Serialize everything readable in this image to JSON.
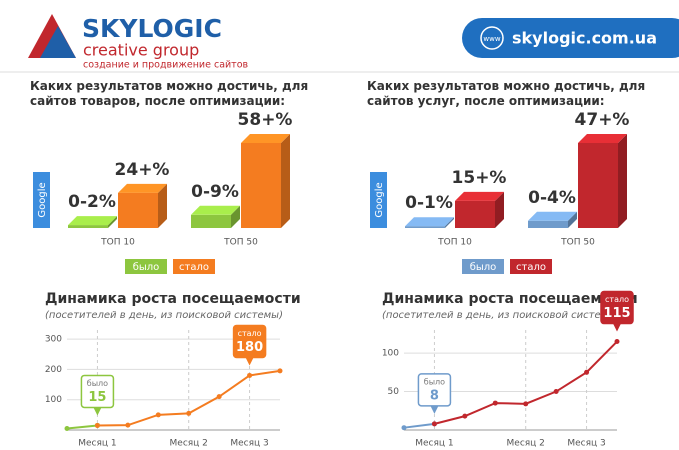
{
  "header": {
    "brand": "SKYLOGIC",
    "tagline": "creative group",
    "slogan": "создание и продвижение сайтов",
    "url_icon": "www",
    "url": "skylogic.com.ua"
  },
  "chart_data": [
    {
      "type": "bar3d",
      "title": "Каких результатов можно достичь, для сайтов товаров, после оптимизации:",
      "axis_label": "Google",
      "categories": [
        "ТОП 10",
        "ТОП 50"
      ],
      "series": [
        {
          "name": "было",
          "color": "#8dc63f",
          "values": [
            2,
            9
          ],
          "value_labels": [
            "0-2%",
            "0-9%"
          ]
        },
        {
          "name": "стало",
          "color": "#f47c20",
          "values": [
            24,
            58
          ],
          "value_labels": [
            "24+%",
            "58+%"
          ]
        }
      ]
    },
    {
      "type": "bar3d",
      "title": "Каких результатов можно достичь, для сайтов услуг, после оптимизации:",
      "axis_label": "Google",
      "categories": [
        "ТОП 10",
        "ТОП 50"
      ],
      "series": [
        {
          "name": "было",
          "color": "#6f9bcb",
          "values": [
            1,
            4
          ],
          "value_labels": [
            "0-1%",
            "0-4%"
          ]
        },
        {
          "name": "стало",
          "color": "#c1272d",
          "values": [
            15,
            47
          ],
          "value_labels": [
            "15+%",
            "47+%"
          ]
        }
      ]
    },
    {
      "type": "line",
      "title": "Динамика роста посещаемости",
      "subtitle": "(посетителей в день, из поисковой системы)",
      "categories": [
        null,
        "Месяц 1",
        null,
        null,
        "Месяц 2",
        null,
        "Месяц 3",
        null
      ],
      "ylim": [
        0,
        330
      ],
      "yticks": [
        100,
        200,
        300
      ],
      "series": [
        {
          "name": "было",
          "color": "#8dc63f",
          "values": [
            5,
            15,
            null,
            null,
            null,
            null,
            null,
            null
          ],
          "value_labels": [
            null,
            "15",
            null,
            null,
            null,
            null,
            null,
            null
          ]
        },
        {
          "name": "стало",
          "color": "#f47c20",
          "values": [
            null,
            15,
            16,
            50,
            55,
            110,
            180,
            195
          ],
          "value_labels": [
            null,
            null,
            null,
            null,
            null,
            null,
            "180",
            null
          ]
        }
      ]
    },
    {
      "type": "line",
      "title": "Динамика роста посещаемости",
      "subtitle": "(посетителей в день, из поисковой системы)",
      "categories": [
        null,
        "Месяц 1",
        null,
        null,
        "Месяц 2",
        null,
        "Месяц 3",
        null
      ],
      "ylim": [
        0,
        130
      ],
      "yticks": [
        50,
        100
      ],
      "series": [
        {
          "name": "было",
          "color": "#6f9bcb",
          "values": [
            3,
            8,
            null,
            null,
            null,
            null,
            null,
            null
          ],
          "value_labels": [
            null,
            "8",
            null,
            null,
            null,
            null,
            null,
            null
          ]
        },
        {
          "name": "стало",
          "color": "#c1272d",
          "values": [
            null,
            8,
            18,
            35,
            34,
            50,
            75,
            115
          ],
          "value_labels": [
            null,
            null,
            null,
            null,
            null,
            null,
            null,
            "115"
          ]
        }
      ]
    }
  ]
}
